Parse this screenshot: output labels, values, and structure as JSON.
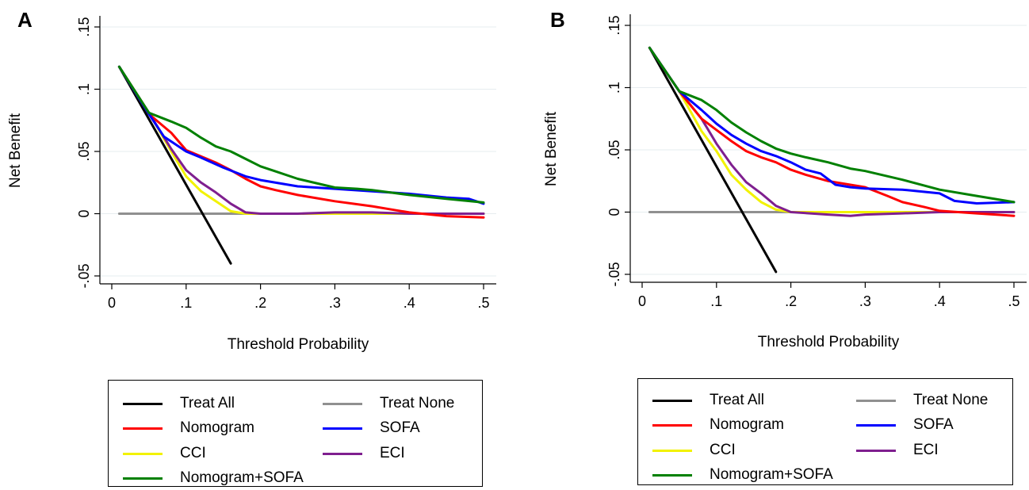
{
  "chart_data": [
    {
      "panel_label": "A",
      "type": "line",
      "xlabel": "Threshold Probability",
      "ylabel": "Net Benefit",
      "xlim": [
        0,
        0.5
      ],
      "ylim": [
        -0.05,
        0.15
      ],
      "xticks": [
        0,
        0.1,
        0.2,
        0.3,
        0.4,
        0.5
      ],
      "xtick_labels": [
        "0",
        ".1",
        ".2",
        ".3",
        ".4",
        ".5"
      ],
      "yticks": [
        -0.05,
        0,
        0.05,
        0.1,
        0.15
      ],
      "ytick_labels": [
        "-.05",
        "0",
        ".05",
        ".1",
        ".15"
      ],
      "grid": true,
      "legend_position": "bottom",
      "series": [
        {
          "name": "Treat All",
          "color": "#000000",
          "x": [
            0.01,
            0.16
          ],
          "y": [
            0.118,
            -0.04
          ]
        },
        {
          "name": "Treat None",
          "color": "#909090",
          "x": [
            0.01,
            0.5
          ],
          "y": [
            0,
            0
          ]
        },
        {
          "name": "Nomogram",
          "color": "#ff0000",
          "x": [
            0.01,
            0.05,
            0.08,
            0.1,
            0.12,
            0.14,
            0.16,
            0.18,
            0.2,
            0.22,
            0.25,
            0.3,
            0.35,
            0.38,
            0.4,
            0.45,
            0.5
          ],
          "y": [
            0.118,
            0.08,
            0.065,
            0.051,
            0.046,
            0.041,
            0.035,
            0.028,
            0.022,
            0.019,
            0.015,
            0.01,
            0.006,
            0.003,
            0.001,
            -0.002,
            -0.003
          ]
        },
        {
          "name": "SOFA",
          "color": "#0000ff",
          "x": [
            0.01,
            0.05,
            0.07,
            0.1,
            0.12,
            0.15,
            0.18,
            0.2,
            0.25,
            0.3,
            0.35,
            0.4,
            0.45,
            0.48,
            0.5
          ],
          "y": [
            0.118,
            0.08,
            0.062,
            0.05,
            0.045,
            0.037,
            0.03,
            0.027,
            0.022,
            0.02,
            0.018,
            0.016,
            0.013,
            0.012,
            0.008
          ]
        },
        {
          "name": "CCI",
          "color": "#f2f200",
          "x": [
            0.01,
            0.05,
            0.08,
            0.1,
            0.12,
            0.14,
            0.16,
            0.18,
            0.2,
            0.3,
            0.4,
            0.5
          ],
          "y": [
            0.118,
            0.081,
            0.05,
            0.03,
            0.018,
            0.01,
            0.002,
            0,
            0,
            0,
            0,
            0
          ]
        },
        {
          "name": "ECI",
          "color": "#7f1f8f",
          "x": [
            0.01,
            0.05,
            0.08,
            0.1,
            0.12,
            0.14,
            0.16,
            0.18,
            0.2,
            0.25,
            0.3,
            0.35,
            0.4,
            0.45,
            0.5
          ],
          "y": [
            0.118,
            0.081,
            0.052,
            0.035,
            0.025,
            0.017,
            0.008,
            0.001,
            0,
            0,
            0.001,
            0.001,
            0,
            0,
            0
          ]
        },
        {
          "name": "Nomogram+SOFA",
          "color": "#008000",
          "x": [
            0.01,
            0.05,
            0.08,
            0.1,
            0.12,
            0.14,
            0.16,
            0.18,
            0.2,
            0.22,
            0.25,
            0.3,
            0.33,
            0.35,
            0.4,
            0.45,
            0.5
          ],
          "y": [
            0.118,
            0.081,
            0.074,
            0.069,
            0.061,
            0.054,
            0.05,
            0.044,
            0.038,
            0.034,
            0.028,
            0.021,
            0.02,
            0.019,
            0.015,
            0.012,
            0.009
          ]
        }
      ]
    },
    {
      "panel_label": "B",
      "type": "line",
      "xlabel": "Threshold Probability",
      "ylabel": "Net Benefit",
      "xlim": [
        0,
        0.5
      ],
      "ylim": [
        -0.05,
        0.15
      ],
      "xticks": [
        0,
        0.1,
        0.2,
        0.3,
        0.4,
        0.5
      ],
      "xtick_labels": [
        "0",
        ".1",
        ".2",
        ".3",
        ".4",
        ".5"
      ],
      "yticks": [
        -0.05,
        0,
        0.05,
        0.1,
        0.15
      ],
      "ytick_labels": [
        "-.05",
        "0",
        ".05",
        ".1",
        ".15"
      ],
      "grid": true,
      "legend_position": "bottom",
      "series": [
        {
          "name": "Treat All",
          "color": "#000000",
          "x": [
            0.01,
            0.18
          ],
          "y": [
            0.132,
            -0.048
          ]
        },
        {
          "name": "Treat None",
          "color": "#909090",
          "x": [
            0.01,
            0.5
          ],
          "y": [
            0,
            0
          ]
        },
        {
          "name": "Nomogram",
          "color": "#ff0000",
          "x": [
            0.01,
            0.05,
            0.08,
            0.1,
            0.12,
            0.14,
            0.16,
            0.18,
            0.2,
            0.22,
            0.25,
            0.28,
            0.3,
            0.33,
            0.35,
            0.38,
            0.4,
            0.45,
            0.5
          ],
          "y": [
            0.132,
            0.097,
            0.075,
            0.066,
            0.057,
            0.049,
            0.044,
            0.04,
            0.034,
            0.03,
            0.025,
            0.022,
            0.02,
            0.013,
            0.008,
            0.004,
            0.001,
            -0.001,
            -0.003
          ]
        },
        {
          "name": "SOFA",
          "color": "#0000ff",
          "x": [
            0.01,
            0.05,
            0.08,
            0.1,
            0.12,
            0.14,
            0.16,
            0.18,
            0.2,
            0.22,
            0.24,
            0.26,
            0.28,
            0.3,
            0.35,
            0.4,
            0.42,
            0.45,
            0.5
          ],
          "y": [
            0.132,
            0.097,
            0.082,
            0.071,
            0.062,
            0.055,
            0.049,
            0.045,
            0.04,
            0.034,
            0.031,
            0.022,
            0.02,
            0.019,
            0.018,
            0.015,
            0.009,
            0.007,
            0.008
          ]
        },
        {
          "name": "CCI",
          "color": "#f2f200",
          "x": [
            0.01,
            0.05,
            0.08,
            0.1,
            0.12,
            0.14,
            0.16,
            0.18,
            0.2,
            0.3,
            0.4,
            0.5
          ],
          "y": [
            0.132,
            0.097,
            0.065,
            0.049,
            0.03,
            0.018,
            0.008,
            0.002,
            0,
            0,
            0,
            0
          ]
        },
        {
          "name": "ECI",
          "color": "#7f1f8f",
          "x": [
            0.01,
            0.05,
            0.08,
            0.1,
            0.12,
            0.14,
            0.16,
            0.18,
            0.2,
            0.25,
            0.28,
            0.3,
            0.35,
            0.4,
            0.45,
            0.5
          ],
          "y": [
            0.132,
            0.097,
            0.075,
            0.055,
            0.038,
            0.024,
            0.015,
            0.005,
            0,
            -0.002,
            -0.003,
            -0.002,
            -0.001,
            0,
            0,
            0
          ]
        },
        {
          "name": "Nomogram+SOFA",
          "color": "#008000",
          "x": [
            0.01,
            0.05,
            0.08,
            0.1,
            0.12,
            0.14,
            0.16,
            0.18,
            0.2,
            0.22,
            0.25,
            0.28,
            0.3,
            0.35,
            0.4,
            0.45,
            0.5
          ],
          "y": [
            0.132,
            0.097,
            0.09,
            0.082,
            0.072,
            0.064,
            0.057,
            0.051,
            0.047,
            0.044,
            0.04,
            0.035,
            0.033,
            0.026,
            0.018,
            0.013,
            0.008
          ]
        }
      ]
    }
  ]
}
